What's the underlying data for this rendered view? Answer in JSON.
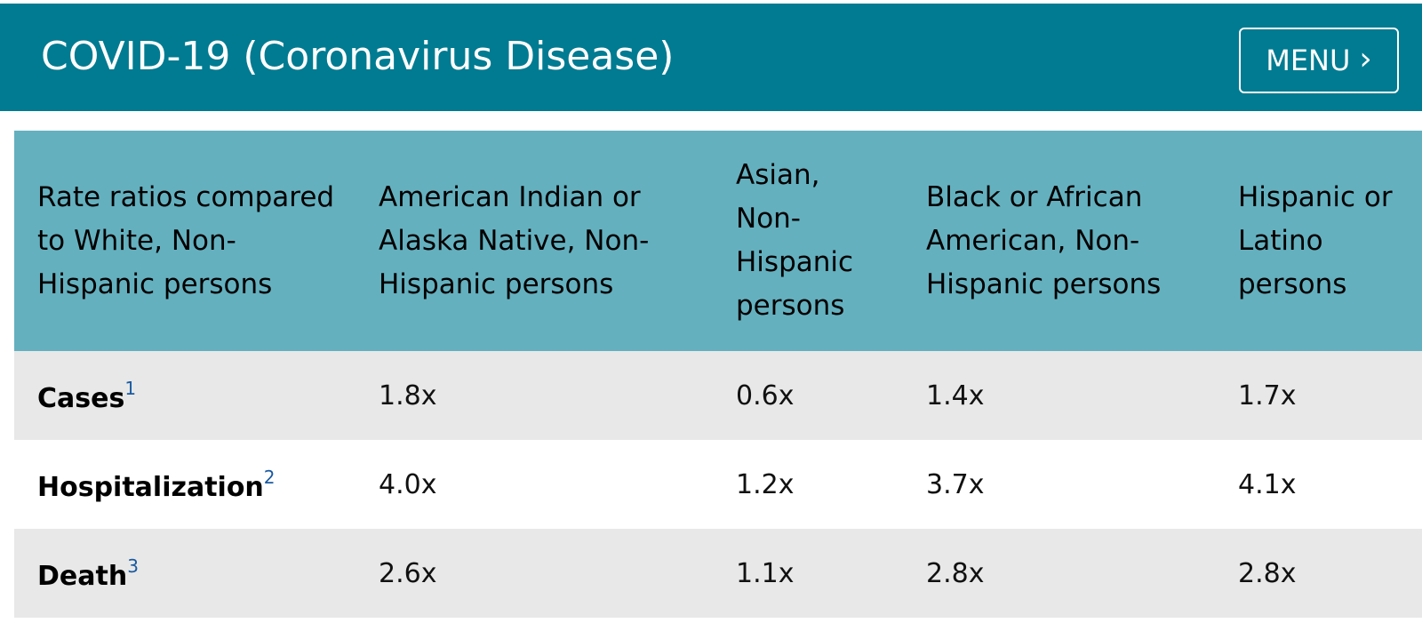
{
  "header": {
    "title": "COVID-19 (Coronavirus Disease)",
    "menu_label": "MENU",
    "menu_icon": "chevron-right-icon",
    "background_color": "#007b91"
  },
  "table": {
    "header_color": "#64b0bf",
    "columns": [
      "Rate ratios compared to White, Non-Hispanic persons",
      "American Indian or Alaska Native, Non-Hispanic persons",
      "Asian, Non-Hispanic persons",
      "Black or African American, Non-Hispanic persons",
      "Hispanic or Latino persons"
    ],
    "rows": [
      {
        "label": "Cases",
        "footnote": "1",
        "values": [
          "1.8x",
          "0.6x",
          "1.4x",
          "1.7x"
        ]
      },
      {
        "label": "Hospitalization",
        "footnote": "2",
        "values": [
          "4.0x",
          "1.2x",
          "3.7x",
          "4.1x"
        ]
      },
      {
        "label": "Death",
        "footnote": "3",
        "values": [
          "2.6x",
          "1.1x",
          "2.8x",
          "2.8x"
        ]
      }
    ]
  }
}
